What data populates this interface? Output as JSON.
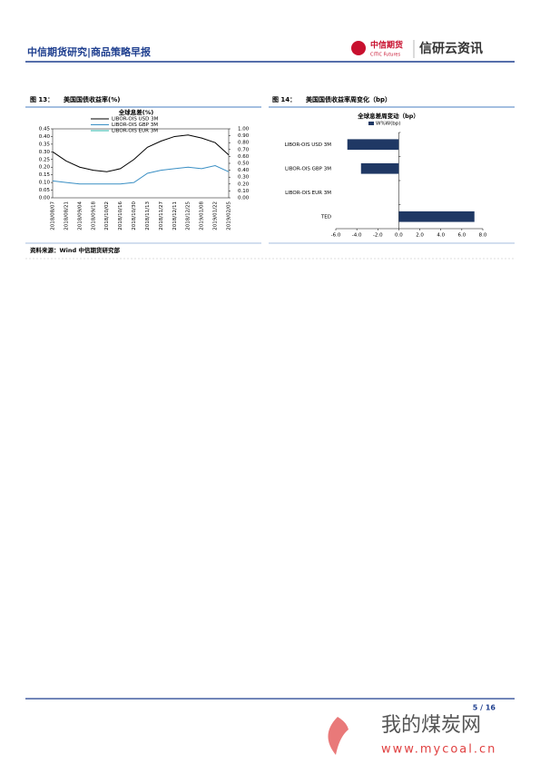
{
  "header": {
    "title": "中信期货研究|商品策略早报",
    "logo_cn": "中信期货",
    "logo_en": "CITIC Futures",
    "brand": "信研云资讯"
  },
  "figures": [
    {
      "label": "图 13：",
      "title": "美国国债收益率(%)"
    },
    {
      "label": "图 14：",
      "title": "美国国债收益率周变化（bp）"
    }
  ],
  "chart_data": [
    {
      "type": "line",
      "title": "全球息差(%)",
      "x": [
        "2018/08/07",
        "2018/08/21",
        "2018/09/04",
        "2018/09/18",
        "2018/10/02",
        "2018/10/16",
        "2018/10/30",
        "2018/11/13",
        "2018/11/27",
        "2018/12/11",
        "2018/12/25",
        "2019/01/08",
        "2019/01/22",
        "2019/02/05"
      ],
      "series": [
        {
          "name": "LIBOR-OIS USD 3M",
          "color": "#000000",
          "values": [
            0.3,
            0.24,
            0.2,
            0.18,
            0.17,
            0.19,
            0.25,
            0.33,
            0.37,
            0.4,
            0.41,
            0.39,
            0.36,
            0.28
          ]
        },
        {
          "name": "LIBOR-OIS GBP 3M",
          "color": "#3a8fc4",
          "values": [
            0.11,
            0.1,
            0.09,
            0.09,
            0.09,
            0.09,
            0.1,
            0.16,
            0.18,
            0.19,
            0.2,
            0.19,
            0.21,
            0.17
          ]
        },
        {
          "name": "LIBOR-OIS EUR 3M",
          "color": "#2bb5a8",
          "axis": "y2",
          "values": [
            null,
            null,
            null,
            null,
            null,
            null,
            null,
            null,
            null,
            null,
            null,
            null,
            null,
            null
          ]
        }
      ],
      "ylim": [
        0,
        0.45
      ],
      "yticks": [
        {
          "value": 0,
          "label": "0.00"
        },
        {
          "value": 0.05,
          "label": "0.05"
        },
        {
          "value": 0.1,
          "label": "0.10"
        },
        {
          "value": 0.15,
          "label": "0.15"
        },
        {
          "value": 0.2,
          "label": "0.20"
        },
        {
          "value": 0.25,
          "label": "0.25"
        },
        {
          "value": 0.3,
          "label": "0.30"
        },
        {
          "value": 0.35,
          "label": "0.35"
        },
        {
          "value": 0.4,
          "label": "0.40"
        },
        {
          "value": 0.45,
          "label": "0.45"
        }
      ],
      "y2lim": [
        0,
        1
      ],
      "y2ticks": [
        {
          "value": 0,
          "label": "0.00"
        },
        {
          "value": 0.1,
          "label": "0.10"
        },
        {
          "value": 0.2,
          "label": "0.20"
        },
        {
          "value": 0.3,
          "label": "0.30"
        },
        {
          "value": 0.4,
          "label": "0.40"
        },
        {
          "value": 0.5,
          "label": "0.50"
        },
        {
          "value": 0.6,
          "label": "0.60"
        },
        {
          "value": 0.7,
          "label": "0.70"
        },
        {
          "value": 0.8,
          "label": "0.80"
        },
        {
          "value": 0.9,
          "label": "0.90"
        },
        {
          "value": 1,
          "label": "1.00"
        }
      ]
    },
    {
      "type": "hbar",
      "title": "全球息差周变动（bp）",
      "categories": [
        "LIBOR-OIS USD 3M",
        "LIBOR-OIS GBP 3M",
        "LIBOR-OIS EUR 3M",
        "TED"
      ],
      "series": [
        {
          "name": "W%W(bp)",
          "color": "#1f3864",
          "values": [
            -4.9,
            -3.6,
            0,
            7.2
          ]
        }
      ],
      "xlim": [
        -6,
        8
      ],
      "xticks": [
        {
          "value": -6,
          "label": "-6.0"
        },
        {
          "value": -4,
          "label": "-4.0"
        },
        {
          "value": -2,
          "label": "-2.0"
        },
        {
          "value": 0,
          "label": "0.0"
        },
        {
          "value": 2,
          "label": "2.0"
        },
        {
          "value": 4,
          "label": "4.0"
        },
        {
          "value": 6,
          "label": "6.0"
        },
        {
          "value": 8,
          "label": "8.0"
        }
      ]
    }
  ],
  "source": "资料来源：Wind  中信期货研究部",
  "page_number": "5 / 16",
  "watermark": {
    "name": "我的煤炭网",
    "url": "www.mycoal.cn"
  }
}
